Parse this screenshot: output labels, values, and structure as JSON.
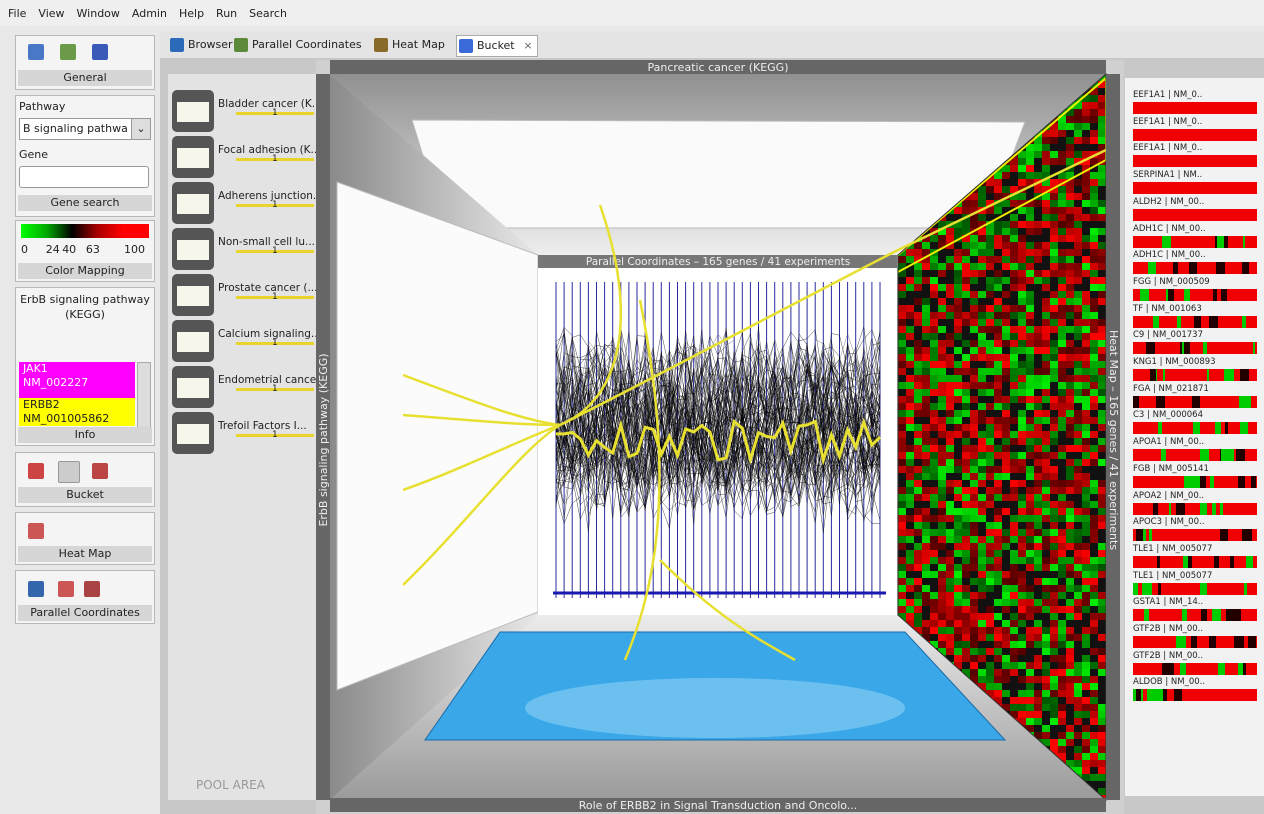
{
  "menu": [
    "File",
    "View",
    "Window",
    "Admin",
    "Help",
    "Run",
    "Search"
  ],
  "toolbox": {
    "general": "General",
    "pathway_label": "Pathway",
    "pathway_select": "B signaling pathwa",
    "gene_label": "Gene",
    "gene_search": "Gene search",
    "color_ticks": [
      0,
      24,
      40,
      63,
      100
    ],
    "color_mapping": "Color Mapping",
    "info_title": "ErbB signaling pathway (KEGG)",
    "info_items": [
      {
        "gene": "JAK1",
        "id": "NM_002227"
      },
      {
        "gene": "ERBB2",
        "id": "NM_001005862"
      }
    ],
    "info": "Info",
    "bucket": "Bucket",
    "heat_map": "Heat Map",
    "parallel_coordinates": "Parallel Coordinates"
  },
  "tabs": [
    "Browser",
    "Parallel Coordinates",
    "Heat Map",
    "Bucket"
  ],
  "pool": {
    "items": [
      {
        "name": "Bladder cancer (K...",
        "count": 1
      },
      {
        "name": "Focal adhesion (K...",
        "count": 1
      },
      {
        "name": "Adherens junction...",
        "count": 1
      },
      {
        "name": "Non-small cell lu...",
        "count": 1
      },
      {
        "name": "Prostate cancer (...",
        "count": 1
      },
      {
        "name": "Calcium signaling...",
        "count": 1
      },
      {
        "name": "Endometrial cance...",
        "count": 1
      },
      {
        "name": "Trefoil Factors I...",
        "count": 1
      }
    ],
    "label": "POOL AREA"
  },
  "bucket": {
    "top": "Pancreatic cancer (KEGG)",
    "left": "ErbB signaling pathway (KEGG)",
    "center": "Parallel Coordinates – 165 genes / 41 experiments",
    "right": "Heat Map – 165 genes / 41 experiments",
    "bottom": "Role of ERBB2 in Signal Transduction and Oncolo..."
  },
  "genes": [
    "EEF1A1 | NM_0..",
    "EEF1A1 | NM_0..",
    "EEF1A1 | NM_0..",
    "SERPINA1 | NM..",
    "ALDH2 | NM_00..",
    "ADH1C | NM_00..",
    "ADH1C | NM_00..",
    "FGG | NM_000509",
    "TF | NM_001063",
    "C9 | NM_001737",
    "KNG1 | NM_000893",
    "FGA | NM_021871",
    "C3 | NM_000064",
    "APOA1 | NM_00..",
    "FGB | NM_005141",
    "APOA2 | NM_00..",
    "APOC3 | NM_00..",
    "TLE1 | NM_005077",
    "TLE1 | NM_005077",
    "GSTA1 | NM_14..",
    "GTF2B | NM_00..",
    "GTF2B | NM_00..",
    "ALDOB | NM_00.."
  ]
}
